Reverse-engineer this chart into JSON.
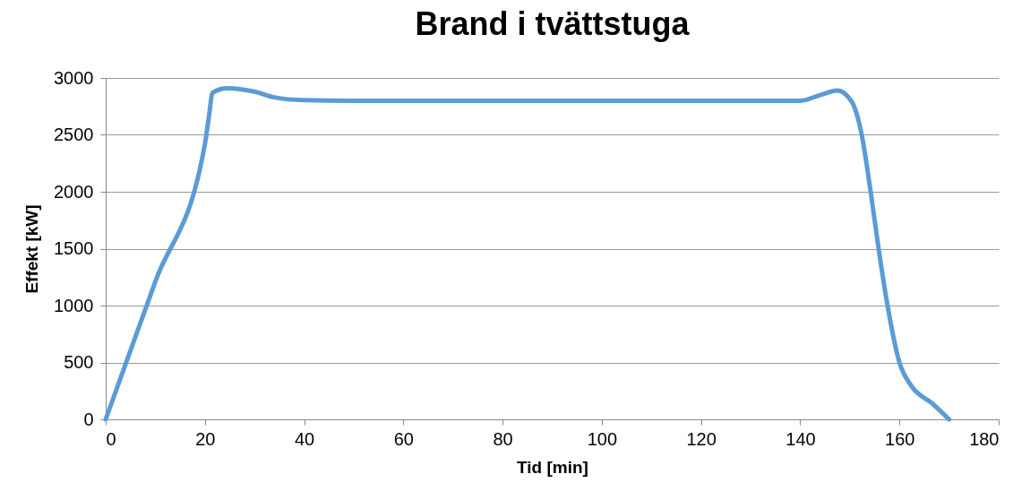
{
  "chart_data": {
    "type": "line",
    "title": "Brand i tvättstuga",
    "xlabel": "Tid [min]",
    "ylabel": "Effekt [kW]",
    "series": [
      {
        "color": "#5b9bd5",
        "x": [
          0,
          10,
          20,
          20.9,
          21.5,
          24.5,
          30,
          34,
          40,
          50,
          140,
          144,
          147.5,
          150.4,
          152.4,
          154.2,
          155.8,
          157.6,
          160,
          162.3,
          166.6,
          170
        ],
        "values": [
          0,
          1210,
          2420,
          2690,
          2870,
          2910,
          2880,
          2830,
          2805,
          2800,
          2800,
          2850,
          2890,
          2790,
          2500,
          2000,
          1500,
          1000,
          500,
          300,
          140,
          0
        ]
      }
    ],
    "xlim": [
      0,
      180
    ],
    "xticks": [
      0,
      20,
      40,
      60,
      80,
      100,
      120,
      140,
      160,
      180
    ],
    "ylim": [
      0,
      3000
    ],
    "yticks": [
      0,
      500,
      1000,
      1500,
      2000,
      2500,
      3000
    ],
    "grid": "y"
  }
}
